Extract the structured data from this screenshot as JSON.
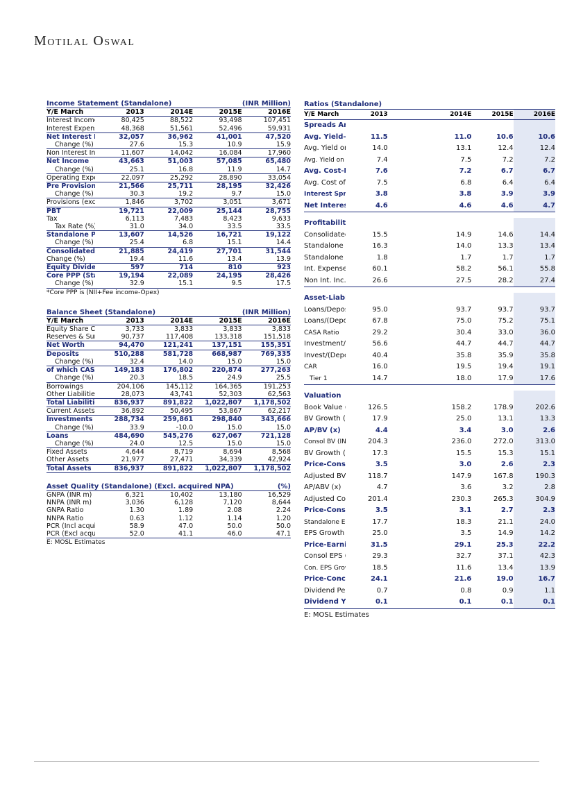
{
  "logo": "Motilal Oswal",
  "income": {
    "title": "Income Statement (Standalone)",
    "unit": "(INR Million)",
    "header": [
      "Y/E March",
      "2013",
      "2014E",
      "2015E",
      "2016E"
    ],
    "rows": [
      {
        "label": "Interest Income",
        "v": [
          "80,425",
          "88,522",
          "93,498",
          "107,451"
        ],
        "s": ""
      },
      {
        "label": "Interest Expense",
        "v": [
          "48,368",
          "51,561",
          "52,496",
          "59,931"
        ],
        "s": ""
      },
      {
        "label": "Net Interest Income",
        "v": [
          "32,057",
          "36,962",
          "41,001",
          "47,520"
        ],
        "s": "b line"
      },
      {
        "label": "Change (%)",
        "v": [
          "27.6",
          "15.3",
          "10.9",
          "15.9"
        ],
        "s": "ind"
      },
      {
        "label": "Non Interest Income",
        "v": [
          "11,607",
          "14,042",
          "16,084",
          "17,960"
        ],
        "s": "line"
      },
      {
        "label": "Net Income",
        "v": [
          "43,663",
          "51,003",
          "57,085",
          "65,480"
        ],
        "s": "b line"
      },
      {
        "label": "Change (%)",
        "v": [
          "25.1",
          "16.8",
          "11.9",
          "14.7"
        ],
        "s": "ind"
      },
      {
        "label": "Operating Expenses",
        "v": [
          "22,097",
          "25,292",
          "28,890",
          "33,054"
        ],
        "s": "line"
      },
      {
        "label": "Pre Provision Profits",
        "v": [
          "21,566",
          "25,711",
          "28,195",
          "32,426"
        ],
        "s": "b line"
      },
      {
        "label": "Change (%)",
        "v": [
          "30.3",
          "19.2",
          "9.7",
          "15.0"
        ],
        "s": "ind"
      },
      {
        "label": "Provisions (excl tax)",
        "v": [
          "1,846",
          "3,702",
          "3,051",
          "3,671"
        ],
        "s": "line"
      },
      {
        "label": "PBT",
        "v": [
          "19,721",
          "22,009",
          "25,144",
          "28,755"
        ],
        "s": "b line"
      },
      {
        "label": "Tax",
        "v": [
          "6,113",
          "7,483",
          "8,423",
          "9,633"
        ],
        "s": ""
      },
      {
        "label": "Tax Rate (%)",
        "v": [
          "31.0",
          "34.0",
          "33.5",
          "33.5"
        ],
        "s": "ind"
      },
      {
        "label": "Standalone PAT",
        "v": [
          "13,607",
          "14,526",
          "16,721",
          "19,122"
        ],
        "s": "b line"
      },
      {
        "label": "Change (%)",
        "v": [
          "25.4",
          "6.8",
          "15.1",
          "14.4"
        ],
        "s": "ind"
      },
      {
        "label": "Consolidated PAT",
        "v": [
          "21,885",
          "24,419",
          "27,701",
          "31,544"
        ],
        "s": "b line"
      },
      {
        "label": "Change (%)",
        "v": [
          "19.4",
          "11.6",
          "13.4",
          "13.9"
        ],
        "s": ""
      },
      {
        "label": "Equity Dividend (Incl tax)",
        "v": [
          "597",
          "714",
          "810",
          "923"
        ],
        "s": "b line"
      },
      {
        "label": "Core PPP (Standlone)*",
        "v": [
          "19,194",
          "22,089",
          "24,195",
          "28,426"
        ],
        "s": "b line"
      },
      {
        "label": "Change (%)",
        "v": [
          "32.9",
          "15.1",
          "9.5",
          "17.5"
        ],
        "s": "ind endline"
      }
    ],
    "note": "*Core PPP is (NII+Fee income-Opex)"
  },
  "balance": {
    "title": "Balance Sheet (Standalone)",
    "unit": "(INR Million)",
    "header": [
      "Y/E March",
      "2013",
      "2014E",
      "2015E",
      "2016E"
    ],
    "rows": [
      {
        "label": "Equity Share Capital",
        "v": [
          "3,733",
          "3,833",
          "3,833",
          "3,833"
        ],
        "s": ""
      },
      {
        "label": "Reserves & Surplus",
        "v": [
          "90,737",
          "117,408",
          "133,318",
          "151,518"
        ],
        "s": ""
      },
      {
        "label": "Net Worth",
        "v": [
          "94,470",
          "121,241",
          "137,151",
          "155,351"
        ],
        "s": "b line"
      },
      {
        "label": "Deposits",
        "v": [
          "510,288",
          "581,728",
          "668,987",
          "769,335"
        ],
        "s": "b line"
      },
      {
        "label": "Change (%)",
        "v": [
          "32.4",
          "14.0",
          "15.0",
          "15.0"
        ],
        "s": "ind"
      },
      {
        "label": "of which CASA Dep",
        "v": [
          "149,183",
          "176,802",
          "220,874",
          "277,263"
        ],
        "s": "b line"
      },
      {
        "label": "Change (%)",
        "v": [
          "20.3",
          "18.5",
          "24.9",
          "25.5"
        ],
        "s": "ind"
      },
      {
        "label": "Borrowings",
        "v": [
          "204,106",
          "145,112",
          "164,365",
          "191,253"
        ],
        "s": "line"
      },
      {
        "label": "Other Liabilities & Prov.",
        "v": [
          "28,073",
          "43,741",
          "52,303",
          "62,563"
        ],
        "s": ""
      },
      {
        "label": "Total Liabilities",
        "v": [
          "836,937",
          "891,822",
          "1,022,807",
          "1,178,502"
        ],
        "s": "b line"
      },
      {
        "label": "Current Assets",
        "v": [
          "36,892",
          "50,495",
          "53,867",
          "62,217"
        ],
        "s": "line"
      },
      {
        "label": "Investments",
        "v": [
          "288,734",
          "259,861",
          "298,840",
          "343,666"
        ],
        "s": "b line"
      },
      {
        "label": "Change (%)",
        "v": [
          "33.9",
          "-10.0",
          "15.0",
          "15.0"
        ],
        "s": "ind"
      },
      {
        "label": "Loans",
        "v": [
          "484,690",
          "545,276",
          "627,067",
          "721,128"
        ],
        "s": "b line"
      },
      {
        "label": "Change (%)",
        "v": [
          "24.0",
          "12.5",
          "15.0",
          "15.0"
        ],
        "s": "ind"
      },
      {
        "label": "Fixed Assets",
        "v": [
          "4,644",
          "8,719",
          "8,694",
          "8,568"
        ],
        "s": "line"
      },
      {
        "label": "Other Assets",
        "v": [
          "21,977",
          "27,471",
          "34,339",
          "42,924"
        ],
        "s": ""
      },
      {
        "label": "Total Assets",
        "v": [
          "836,937",
          "891,822",
          "1,022,807",
          "1,178,502"
        ],
        "s": "b line endline"
      }
    ]
  },
  "quality": {
    "title": "Asset Quality (Standalone) (Excl. acquired NPA)",
    "unit": "(%)",
    "rows": [
      {
        "label": "GNPA (INR m)",
        "v": [
          "6,321",
          "10,402",
          "13,180",
          "16,529"
        ],
        "s": ""
      },
      {
        "label": "NNPA (INR m)",
        "v": [
          "3,036",
          "6,128",
          "7,120",
          "8,644"
        ],
        "s": ""
      },
      {
        "label": "GNPA Ratio",
        "v": [
          "1.30",
          "1.89",
          "2.08",
          "2.24"
        ],
        "s": ""
      },
      {
        "label": "NNPA Ratio",
        "v": [
          "0.63",
          "1.12",
          "1.14",
          "1.20"
        ],
        "s": ""
      },
      {
        "label": "PCR (Incl acquired NPA)",
        "v": [
          "58.9",
          "47.0",
          "50.0",
          "50.0"
        ],
        "s": ""
      },
      {
        "label": "PCR (Excl acquired NPA)",
        "v": [
          "52.0",
          "41.1",
          "46.0",
          "47.1"
        ],
        "s": "endline"
      }
    ],
    "note": "E: MOSL Estimates"
  },
  "ratios": {
    "title": "Ratios (Standalone)",
    "header": [
      "Y/E March",
      "2013",
      "2014E",
      "2015E",
      "2016E"
    ],
    "rows": [
      {
        "label": "Spreads Analysis (%)",
        "t": true,
        "v": [
          "",
          "",
          "",
          ""
        ]
      },
      {
        "label": "Avg. Yield-Earning Assets",
        "v": [
          "11.5",
          "11.0",
          "10.6",
          "10.6"
        ],
        "s": "b"
      },
      {
        "label": "Avg. Yield on loans",
        "v": [
          "14.0",
          "13.1",
          "12.4",
          "12.4"
        ],
        "s": ""
      },
      {
        "label": "Avg. Yield on Investments",
        "v": [
          "7.4",
          "7.5",
          "7.2",
          "7.2"
        ],
        "s": "small"
      },
      {
        "label": "Avg. Cost-Int. Bear. Liab.",
        "v": [
          "7.6",
          "7.2",
          "6.7",
          "6.7"
        ],
        "s": "b"
      },
      {
        "label": "Avg. Cost of Deposits",
        "v": [
          "7.5",
          "6.8",
          "6.4",
          "6.4"
        ],
        "s": ""
      },
      {
        "label": "Interest Spread",
        "v": [
          "3.8",
          "3.8",
          "3.9",
          "3.9"
        ],
        "s": "b small"
      },
      {
        "label": "Net Interest Margin",
        "v": [
          "4.6",
          "4.6",
          "4.6",
          "4.7"
        ],
        "s": "b endline"
      },
      {
        "gap": true
      },
      {
        "label": "Profitability Ratios (%)",
        "t": true,
        "v": [
          "",
          "",
          "",
          ""
        ]
      },
      {
        "label": "Consolidated RoE",
        "v": [
          "15.5",
          "14.9",
          "14.6",
          "14.4"
        ],
        "s": ""
      },
      {
        "label": "Standalone Core RoE",
        "v": [
          "16.3",
          "14.0",
          "13.3",
          "13.4"
        ],
        "s": ""
      },
      {
        "label": "Standalone RoA",
        "v": [
          "1.8",
          "1.7",
          "1.7",
          "1.7"
        ],
        "s": ""
      },
      {
        "label": "Int. Expense/Int.Income",
        "v": [
          "60.1",
          "58.2",
          "56.1",
          "55.8"
        ],
        "s": ""
      },
      {
        "label": "Non Int. Inc./Net Income",
        "v": [
          "26.6",
          "27.5",
          "28.2",
          "27.4"
        ],
        "s": "endline"
      },
      {
        "gap": true
      },
      {
        "label": "Asset-Liability Profile (%)",
        "t": true,
        "v": [
          "",
          "",
          "",
          ""
        ]
      },
      {
        "label": "Loans/Deposit Ratio",
        "v": [
          "95.0",
          "93.7",
          "93.7",
          "93.7"
        ],
        "s": ""
      },
      {
        "label": "Loans/(Deposits+Borrowings)",
        "v": [
          "67.8",
          "75.0",
          "75.2",
          "75.1"
        ],
        "s": ""
      },
      {
        "label": "CASA Ratio",
        "v": [
          "29.2",
          "30.4",
          "33.0",
          "36.0"
        ],
        "s": "small"
      },
      {
        "label": "Investment/Deposit Ratio",
        "v": [
          "56.6",
          "44.7",
          "44.7",
          "44.7"
        ],
        "s": ""
      },
      {
        "label": "Invest/(Deposits+Borrowings)",
        "v": [
          "40.4",
          "35.8",
          "35.9",
          "35.8"
        ],
        "s": ""
      },
      {
        "label": "CAR",
        "v": [
          "16.0",
          "19.5",
          "19.4",
          "19.1"
        ],
        "s": "small"
      },
      {
        "label": "Tier 1",
        "v": [
          "14.7",
          "18.0",
          "17.9",
          "17.6"
        ],
        "s": "small sub endline"
      },
      {
        "gap": true
      },
      {
        "label": "Valuation",
        "t": true,
        "v": [
          "",
          "",
          "",
          ""
        ]
      },
      {
        "label": "Book Value (INR)",
        "v": [
          "126.5",
          "158.2",
          "178.9",
          "202.6"
        ],
        "s": ""
      },
      {
        "label": "BV Growth (%)",
        "v": [
          "17.9",
          "25.0",
          "13.1",
          "13.3"
        ],
        "s": ""
      },
      {
        "label": "AP/BV (x)",
        "v": [
          "4.4",
          "3.4",
          "3.0",
          "2.6"
        ],
        "s": "b"
      },
      {
        "label": "Consol BV (INR)",
        "v": [
          "204.3",
          "236.0",
          "272.0",
          "313.0"
        ],
        "s": "small"
      },
      {
        "label": "BV Growth (%)",
        "v": [
          "17.3",
          "15.5",
          "15.3",
          "15.1"
        ],
        "s": ""
      },
      {
        "label": "Price-Consol BV (x)",
        "v": [
          "3.5",
          "3.0",
          "2.6",
          "2.3"
        ],
        "s": "b"
      },
      {
        "label": "Adjusted BV (INR)*",
        "v": [
          "118.7",
          "147.9",
          "167.8",
          "190.3"
        ],
        "s": ""
      },
      {
        "label": "AP/ABV (x)",
        "v": [
          "4.7",
          "3.6",
          "3.2",
          "2.8"
        ],
        "s": ""
      },
      {
        "label": "Adjusted Consol BV",
        "v": [
          "201.4",
          "230.3",
          "265.3",
          "304.9"
        ],
        "s": ""
      },
      {
        "label": "Price-Consol ABV (x)",
        "v": [
          "3.5",
          "3.1",
          "2.7",
          "2.3"
        ],
        "s": "b"
      },
      {
        "label": "Standalone EPS (INR)",
        "v": [
          "17.7",
          "18.3",
          "21.1",
          "24.0"
        ],
        "s": "small"
      },
      {
        "label": "EPS Growth (%)",
        "v": [
          "25.0",
          "3.5",
          "14.9",
          "14.2"
        ],
        "s": ""
      },
      {
        "label": "Price-Earnings (x)",
        "v": [
          "31.5",
          "29.1",
          "25.3",
          "22.2"
        ],
        "s": "b"
      },
      {
        "label": "Consol EPS (INR)",
        "v": [
          "29.3",
          "32.7",
          "37.1",
          "42.3"
        ],
        "s": ""
      },
      {
        "label": "Con. EPS Growth (%)",
        "v": [
          "18.5",
          "11.6",
          "13.4",
          "13.9"
        ],
        "s": "small"
      },
      {
        "label": "Price-Concol EPS (x)",
        "v": [
          "24.1",
          "21.6",
          "19.0",
          "16.7"
        ],
        "s": "b"
      },
      {
        "label": "Dividend Per Share (INR)",
        "v": [
          "0.7",
          "0.8",
          "0.9",
          "1.1"
        ],
        "s": ""
      },
      {
        "label": "Dividend Yield (%)",
        "v": [
          "0.1",
          "0.1",
          "0.1",
          "0.1"
        ],
        "s": "b endline"
      }
    ],
    "note": "E: MOSL Estimates"
  }
}
